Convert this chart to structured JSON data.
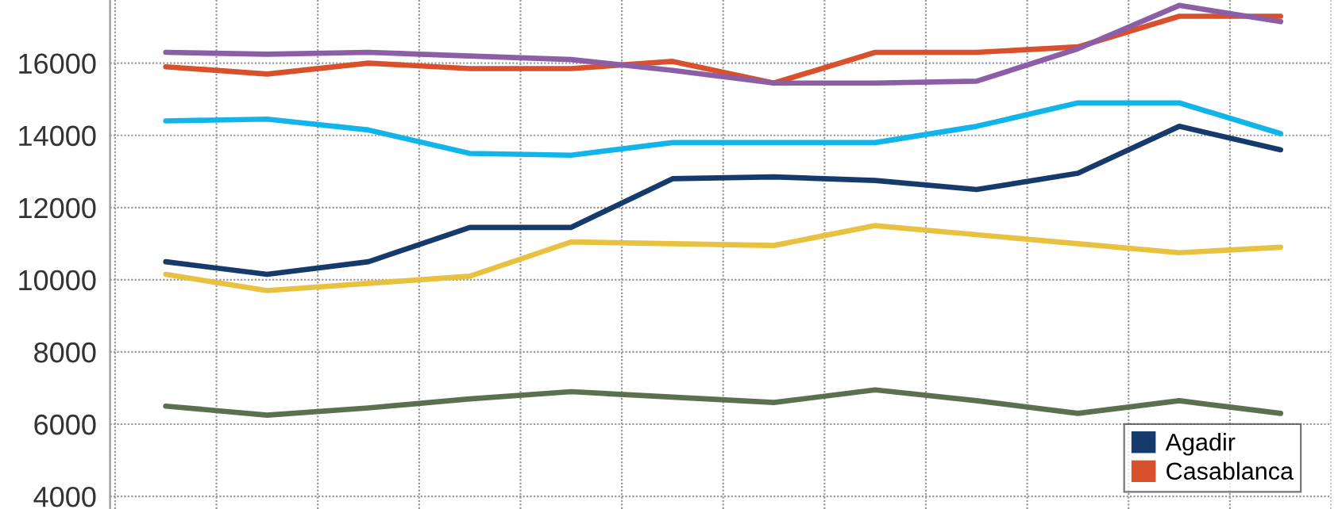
{
  "chart_data": {
    "type": "line",
    "categories": [
      null,
      null,
      null,
      null,
      null,
      null,
      null,
      null,
      null,
      null,
      null,
      null
    ],
    "series": [
      {
        "name": "Agadir",
        "color": "#163a6b",
        "values": [
          10500,
          10150,
          10500,
          11450,
          11450,
          12800,
          12850,
          12750,
          12500,
          12950,
          14250,
          13600
        ]
      },
      {
        "name": "Casablanca",
        "color": "#d9512c",
        "values": [
          15900,
          15700,
          16000,
          15850,
          15850,
          16050,
          15450,
          16300,
          16300,
          16450,
          17300,
          17300
        ]
      },
      {
        "color": "#8b5ea6",
        "values": [
          16300,
          16250,
          16300,
          16200,
          16100,
          15800,
          15450,
          15450,
          15500,
          16400,
          17600,
          17150
        ]
      },
      {
        "color": "#12b5ea",
        "values": [
          14400,
          14450,
          14150,
          13500,
          13450,
          13800,
          13800,
          13800,
          14250,
          14900,
          14900,
          14050
        ]
      },
      {
        "color": "#e8c140",
        "values": [
          10150,
          9700,
          9900,
          10100,
          11050,
          11000,
          10950,
          11500,
          11250,
          11000,
          10750,
          10900
        ]
      },
      {
        "color": "#5a7050",
        "values": [
          6500,
          6250,
          6450,
          6700,
          6900,
          6750,
          6600,
          6950,
          6650,
          6300,
          6650,
          6300
        ]
      }
    ],
    "ylim": [
      3650,
      17750
    ],
    "yticks": [
      4000,
      6000,
      8000,
      10000,
      12000,
      14000,
      16000
    ],
    "grid": true,
    "legend": "bottom right",
    "marker": "none",
    "line_style": "solid"
  }
}
